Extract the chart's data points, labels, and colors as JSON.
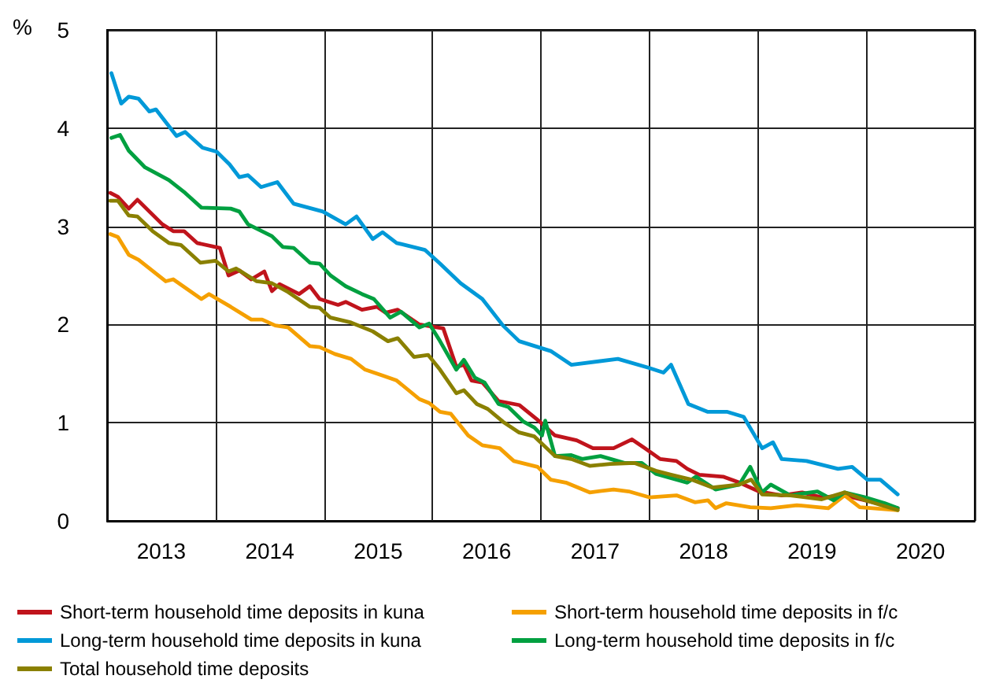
{
  "chart_data": {
    "type": "line",
    "ylabel": "%",
    "xlim": [
      2013,
      2021
    ],
    "ylim": [
      0,
      5
    ],
    "xticks": [
      {
        "value": 2013,
        "label": null
      },
      {
        "value": 2013.5,
        "label": "2013"
      },
      {
        "value": 2014,
        "label": null
      },
      {
        "value": 2014.5,
        "label": "2014"
      },
      {
        "value": 2015,
        "label": null
      },
      {
        "value": 2015.5,
        "label": "2015"
      },
      {
        "value": 2016,
        "label": null
      },
      {
        "value": 2016.5,
        "label": "2016"
      },
      {
        "value": 2017,
        "label": null
      },
      {
        "value": 2017.5,
        "label": "2017"
      },
      {
        "value": 2018,
        "label": null
      },
      {
        "value": 2018.5,
        "label": "2018"
      },
      {
        "value": 2019,
        "label": null
      },
      {
        "value": 2019.5,
        "label": "2019"
      },
      {
        "value": 2020,
        "label": null
      },
      {
        "value": 2020.5,
        "label": "2020"
      },
      {
        "value": 2021,
        "label": null
      }
    ],
    "yticks": [
      0,
      1,
      2,
      3,
      4,
      5
    ],
    "grid": true,
    "legend": "bottom",
    "series": [
      {
        "name": "Short-term household time deposits in kuna",
        "color": "#c0141c",
        "x": [
          2013.03,
          2013.1,
          2013.2,
          2013.28,
          2013.51,
          2013.61,
          2013.71,
          2013.83,
          2014.04,
          2014.12,
          2014.22,
          2014.33,
          2014.45,
          2014.52,
          2014.59,
          2014.77,
          2014.87,
          2014.96,
          2015.13,
          2015.2,
          2015.35,
          2015.49,
          2015.57,
          2015.68,
          2015.88,
          2016.1,
          2016.22,
          2016.29,
          2016.36,
          2016.46,
          2016.61,
          2016.8,
          2016.99,
          2017.13,
          2017.33,
          2017.48,
          2017.67,
          2017.84,
          2017.96,
          2018.1,
          2018.25,
          2018.35,
          2018.46,
          2018.68,
          2018.83,
          2019.01,
          2019.22,
          2019.41,
          2019.59,
          2019.8,
          2019.99,
          2020.29
        ],
        "values": [
          3.34,
          3.3,
          3.18,
          3.27,
          3.02,
          2.95,
          2.95,
          2.83,
          2.78,
          2.5,
          2.55,
          2.46,
          2.54,
          2.34,
          2.41,
          2.31,
          2.39,
          2.26,
          2.2,
          2.23,
          2.15,
          2.18,
          2.12,
          2.15,
          2.0,
          1.96,
          1.57,
          1.59,
          1.43,
          1.41,
          1.22,
          1.18,
          1.01,
          0.87,
          0.82,
          0.74,
          0.74,
          0.83,
          0.74,
          0.63,
          0.61,
          0.53,
          0.47,
          0.45,
          0.39,
          0.3,
          0.26,
          0.29,
          0.24,
          0.26,
          0.21,
          0.13
        ]
      },
      {
        "name": "Short-term household time deposits in f/c",
        "color": "#f5a000",
        "x": [
          2013.03,
          2013.1,
          2013.2,
          2013.29,
          2013.54,
          2013.61,
          2013.87,
          2013.94,
          2014.14,
          2014.33,
          2014.43,
          2014.55,
          2014.67,
          2014.87,
          2014.96,
          2015.1,
          2015.25,
          2015.38,
          2015.54,
          2015.67,
          2015.88,
          2015.97,
          2016.07,
          2016.17,
          2016.33,
          2016.46,
          2016.62,
          2016.75,
          2016.97,
          2017.09,
          2017.23,
          2017.45,
          2017.67,
          2017.81,
          2018.0,
          2018.25,
          2018.42,
          2018.54,
          2018.61,
          2018.71,
          2018.93,
          2019.12,
          2019.36,
          2019.65,
          2019.8,
          2019.94,
          2020.29
        ],
        "values": [
          2.92,
          2.89,
          2.71,
          2.66,
          2.44,
          2.46,
          2.26,
          2.31,
          2.18,
          2.05,
          2.05,
          1.99,
          1.97,
          1.78,
          1.77,
          1.7,
          1.65,
          1.54,
          1.48,
          1.43,
          1.24,
          1.2,
          1.11,
          1.09,
          0.87,
          0.77,
          0.74,
          0.61,
          0.55,
          0.42,
          0.39,
          0.29,
          0.32,
          0.3,
          0.24,
          0.26,
          0.19,
          0.21,
          0.13,
          0.18,
          0.14,
          0.13,
          0.16,
          0.13,
          0.26,
          0.14,
          0.11
        ]
      },
      {
        "name": "Long-term household time deposits in kuna",
        "color": "#0099d8",
        "x": [
          2013.04,
          2013.13,
          2013.2,
          2013.29,
          2013.39,
          2013.45,
          2013.64,
          2013.72,
          2013.88,
          2014.01,
          2014.13,
          2014.22,
          2014.3,
          2014.42,
          2014.57,
          2014.72,
          2014.99,
          2015.2,
          2015.3,
          2015.45,
          2015.54,
          2015.67,
          2015.93,
          2016.07,
          2016.26,
          2016.46,
          2016.65,
          2016.8,
          2017.09,
          2017.28,
          2017.71,
          2017.99,
          2018.13,
          2018.2,
          2018.36,
          2018.54,
          2018.72,
          2018.87,
          2019.04,
          2019.14,
          2019.22,
          2019.45,
          2019.74,
          2019.87,
          2020.01,
          2020.13,
          2020.29
        ],
        "values": [
          4.56,
          4.25,
          4.32,
          4.3,
          4.17,
          4.19,
          3.92,
          3.96,
          3.8,
          3.76,
          3.63,
          3.5,
          3.52,
          3.4,
          3.45,
          3.23,
          3.15,
          3.02,
          3.1,
          2.87,
          2.94,
          2.83,
          2.76,
          2.62,
          2.42,
          2.26,
          1.99,
          1.83,
          1.73,
          1.59,
          1.65,
          1.56,
          1.51,
          1.59,
          1.19,
          1.11,
          1.11,
          1.06,
          0.74,
          0.8,
          0.63,
          0.61,
          0.53,
          0.55,
          0.42,
          0.42,
          0.27
        ]
      },
      {
        "name": "Long-term household time deposits in f/c",
        "color": "#00a040",
        "x": [
          2013.04,
          2013.12,
          2013.2,
          2013.35,
          2013.57,
          2013.72,
          2013.87,
          2014.14,
          2014.22,
          2014.3,
          2014.52,
          2014.62,
          2014.72,
          2014.87,
          2014.96,
          2015.06,
          2015.2,
          2015.35,
          2015.46,
          2015.61,
          2015.71,
          2015.88,
          2015.97,
          2016.07,
          2016.22,
          2016.29,
          2016.39,
          2016.48,
          2016.61,
          2016.7,
          2016.84,
          2016.94,
          2017.01,
          2017.04,
          2017.13,
          2017.28,
          2017.38,
          2017.55,
          2017.77,
          2017.93,
          2018.06,
          2018.35,
          2018.43,
          2018.61,
          2018.83,
          2018.93,
          2019.04,
          2019.12,
          2019.3,
          2019.55,
          2019.7,
          2019.8,
          2019.99,
          2020.17,
          2020.29
        ],
        "values": [
          3.9,
          3.93,
          3.77,
          3.6,
          3.47,
          3.34,
          3.19,
          3.18,
          3.15,
          3.02,
          2.9,
          2.79,
          2.78,
          2.63,
          2.62,
          2.5,
          2.39,
          2.31,
          2.26,
          2.07,
          2.13,
          1.97,
          2.01,
          1.83,
          1.54,
          1.64,
          1.46,
          1.41,
          1.19,
          1.16,
          1.01,
          0.95,
          0.87,
          1.02,
          0.66,
          0.67,
          0.63,
          0.66,
          0.59,
          0.59,
          0.48,
          0.39,
          0.45,
          0.32,
          0.37,
          0.55,
          0.29,
          0.37,
          0.26,
          0.3,
          0.21,
          0.29,
          0.24,
          0.18,
          0.13
        ]
      },
      {
        "name": "Total household time deposits",
        "color": "#8a8000",
        "x": [
          2013.03,
          2013.1,
          2013.2,
          2013.28,
          2013.42,
          2013.57,
          2013.68,
          2013.86,
          2014.0,
          2014.12,
          2014.19,
          2014.38,
          2014.52,
          2014.67,
          2014.87,
          2014.96,
          2015.06,
          2015.25,
          2015.45,
          2015.59,
          2015.68,
          2015.83,
          2015.96,
          2016.07,
          2016.22,
          2016.29,
          2016.41,
          2016.51,
          2016.65,
          2016.8,
          2016.94,
          2017.13,
          2017.28,
          2017.45,
          2017.64,
          2017.86,
          2018.06,
          2018.2,
          2018.39,
          2018.58,
          2018.83,
          2018.94,
          2019.04,
          2019.3,
          2019.59,
          2019.8,
          2019.99,
          2020.29
        ],
        "values": [
          3.26,
          3.26,
          3.11,
          3.1,
          2.95,
          2.83,
          2.81,
          2.63,
          2.65,
          2.54,
          2.57,
          2.44,
          2.42,
          2.33,
          2.18,
          2.17,
          2.07,
          2.02,
          1.93,
          1.83,
          1.86,
          1.67,
          1.69,
          1.54,
          1.3,
          1.33,
          1.19,
          1.14,
          1.01,
          0.9,
          0.86,
          0.66,
          0.63,
          0.56,
          0.58,
          0.59,
          0.51,
          0.47,
          0.42,
          0.34,
          0.37,
          0.42,
          0.27,
          0.26,
          0.22,
          0.29,
          0.21,
          0.11
        ]
      }
    ]
  }
}
